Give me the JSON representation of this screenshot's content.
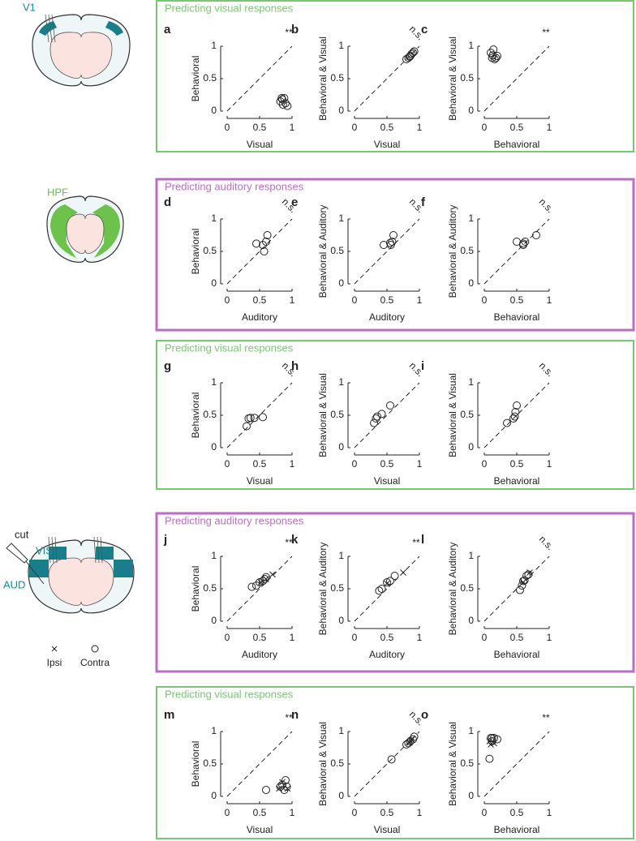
{
  "panels": [
    {
      "title": "Predicting visual responses",
      "color": "#7cc576"
    },
    {
      "title": "Predicting auditory responses",
      "color": "#b86fc0"
    },
    {
      "title": "Predicting visual responses",
      "color": "#7cc576"
    },
    {
      "title": "Predicting auditory responses",
      "color": "#b86fc0"
    },
    {
      "title": "Predicting visual responses",
      "color": "#7cc576"
    }
  ],
  "brains": {
    "region_1": "V1",
    "region_2": "HPF",
    "region_3a": "VIS",
    "region_3b": "AUD",
    "cut": "cut",
    "legend": [
      "Ipsi",
      "Contra"
    ]
  },
  "chart_data": [
    {
      "type": "scatter",
      "label": "a",
      "significance": "**",
      "xlabel": "Visual",
      "ylabel": "Behavioral",
      "xlim": [
        0,
        1
      ],
      "ylim": [
        0,
        1
      ],
      "xticks": [
        0,
        0.5,
        1
      ],
      "yticks": [
        0,
        0.5,
        1
      ],
      "series": [
        {
          "marker": "circle",
          "x": [
            0.85,
            0.88,
            0.82,
            0.9,
            0.93,
            0.86,
            0.84
          ],
          "y": [
            0.18,
            0.2,
            0.15,
            0.12,
            0.08,
            0.1,
            0.2
          ]
        }
      ]
    },
    {
      "type": "scatter",
      "label": "b",
      "significance": "n.s.",
      "xlabel": "Visual",
      "ylabel": "Behavioral & Visual",
      "xlim": [
        0,
        1
      ],
      "ylim": [
        0,
        1
      ],
      "xticks": [
        0,
        0.5,
        1
      ],
      "yticks": [
        0,
        0.5,
        1
      ],
      "series": [
        {
          "marker": "circle",
          "x": [
            0.8,
            0.83,
            0.85,
            0.88,
            0.9,
            0.92,
            0.86
          ],
          "y": [
            0.8,
            0.82,
            0.84,
            0.88,
            0.9,
            0.92,
            0.85
          ]
        }
      ]
    },
    {
      "type": "scatter",
      "label": "c",
      "significance": "**",
      "xlabel": "Behavioral",
      "ylabel": "Behavioral & Visual",
      "xlim": [
        0,
        1
      ],
      "ylim": [
        0,
        1
      ],
      "xticks": [
        0,
        0.5,
        1
      ],
      "yticks": [
        0,
        0.5,
        1
      ],
      "series": [
        {
          "marker": "circle",
          "x": [
            0.1,
            0.14,
            0.12,
            0.16,
            0.2,
            0.18,
            0.13
          ],
          "y": [
            0.9,
            0.95,
            0.82,
            0.8,
            0.85,
            0.82,
            0.86
          ]
        }
      ]
    },
    {
      "type": "scatter",
      "label": "d",
      "significance": "n.s.",
      "xlabel": "Auditory",
      "ylabel": "Behavioral",
      "xlim": [
        0,
        1
      ],
      "ylim": [
        0,
        1
      ],
      "xticks": [
        0,
        0.5,
        1
      ],
      "yticks": [
        0,
        0.5,
        1
      ],
      "series": [
        {
          "marker": "circle",
          "x": [
            0.45,
            0.55,
            0.6,
            0.62,
            0.57
          ],
          "y": [
            0.62,
            0.6,
            0.65,
            0.75,
            0.5
          ]
        }
      ]
    },
    {
      "type": "scatter",
      "label": "e",
      "significance": "n.s.",
      "xlabel": "Auditory",
      "ylabel": "Behavioral & Auditory",
      "xlim": [
        0,
        1
      ],
      "ylim": [
        0,
        1
      ],
      "xticks": [
        0,
        0.5,
        1
      ],
      "yticks": [
        0,
        0.5,
        1
      ],
      "series": [
        {
          "marker": "circle",
          "x": [
            0.45,
            0.55,
            0.58,
            0.6,
            0.56
          ],
          "y": [
            0.6,
            0.63,
            0.65,
            0.75,
            0.6
          ]
        }
      ]
    },
    {
      "type": "scatter",
      "label": "f",
      "significance": "n.s.",
      "xlabel": "Behavioral",
      "ylabel": "Behavioral & Auditory",
      "xlim": [
        0,
        1
      ],
      "ylim": [
        0,
        1
      ],
      "xticks": [
        0,
        0.5,
        1
      ],
      "yticks": [
        0,
        0.5,
        1
      ],
      "series": [
        {
          "marker": "circle",
          "x": [
            0.5,
            0.6,
            0.63,
            0.8,
            0.6
          ],
          "y": [
            0.65,
            0.62,
            0.65,
            0.75,
            0.6
          ]
        }
      ]
    },
    {
      "type": "scatter",
      "label": "g",
      "significance": "n.s.",
      "xlabel": "Visual",
      "ylabel": "Behavioral",
      "xlim": [
        0,
        1
      ],
      "ylim": [
        0,
        1
      ],
      "xticks": [
        0,
        0.5,
        1
      ],
      "yticks": [
        0,
        0.5,
        1
      ],
      "series": [
        {
          "marker": "circle",
          "x": [
            0.3,
            0.33,
            0.36,
            0.42,
            0.55
          ],
          "y": [
            0.33,
            0.45,
            0.46,
            0.46,
            0.47
          ]
        }
      ]
    },
    {
      "type": "scatter",
      "label": "h",
      "significance": "n.s.",
      "xlabel": "Visual",
      "ylabel": "Behavioral & Visual",
      "xlim": [
        0,
        1
      ],
      "ylim": [
        0,
        1
      ],
      "xticks": [
        0,
        0.5,
        1
      ],
      "yticks": [
        0,
        0.5,
        1
      ],
      "series": [
        {
          "marker": "circle",
          "x": [
            0.3,
            0.33,
            0.35,
            0.42,
            0.55
          ],
          "y": [
            0.38,
            0.45,
            0.48,
            0.52,
            0.65
          ]
        }
      ]
    },
    {
      "type": "scatter",
      "label": "i",
      "significance": "n.s.",
      "xlabel": "Behavioral",
      "ylabel": "Behavioral & Visual",
      "xlim": [
        0,
        1
      ],
      "ylim": [
        0,
        1
      ],
      "xticks": [
        0,
        0.5,
        1
      ],
      "yticks": [
        0,
        0.5,
        1
      ],
      "series": [
        {
          "marker": "circle",
          "x": [
            0.35,
            0.45,
            0.47,
            0.48,
            0.5
          ],
          "y": [
            0.38,
            0.45,
            0.48,
            0.55,
            0.65
          ]
        }
      ]
    },
    {
      "type": "scatter",
      "label": "j",
      "significance": "**",
      "xlabel": "Auditory",
      "ylabel": "Behavioral",
      "xlim": [
        0,
        1
      ],
      "ylim": [
        0,
        1
      ],
      "xticks": [
        0,
        0.5,
        1
      ],
      "yticks": [
        0,
        0.5,
        1
      ],
      "series": [
        {
          "marker": "circle",
          "x": [
            0.38,
            0.45,
            0.5,
            0.55,
            0.58,
            0.6
          ],
          "y": [
            0.53,
            0.55,
            0.6,
            0.62,
            0.65,
            0.68
          ]
        },
        {
          "marker": "cross",
          "x": [
            0.52,
            0.7,
            0.6
          ],
          "y": [
            0.6,
            0.72,
            0.65
          ]
        }
      ]
    },
    {
      "type": "scatter",
      "label": "k",
      "significance": "**",
      "xlabel": "Auditory",
      "ylabel": "Behavioral & Auditory",
      "xlim": [
        0,
        1
      ],
      "ylim": [
        0,
        1
      ],
      "xticks": [
        0,
        0.5,
        1
      ],
      "yticks": [
        0,
        0.5,
        1
      ],
      "series": [
        {
          "marker": "circle",
          "x": [
            0.38,
            0.42,
            0.5,
            0.55,
            0.62
          ],
          "y": [
            0.47,
            0.5,
            0.6,
            0.62,
            0.7
          ]
        },
        {
          "marker": "cross",
          "x": [
            0.5,
            0.75
          ],
          "y": [
            0.58,
            0.75
          ]
        }
      ]
    },
    {
      "type": "scatter",
      "label": "l",
      "significance": "n.s.",
      "xlabel": "Behavioral",
      "ylabel": "Behavioral & Auditory",
      "xlim": [
        0,
        1
      ],
      "ylim": [
        0,
        1
      ],
      "xticks": [
        0,
        0.5,
        1
      ],
      "yticks": [
        0,
        0.5,
        1
      ],
      "series": [
        {
          "marker": "circle",
          "x": [
            0.55,
            0.58,
            0.6,
            0.62,
            0.65,
            0.68
          ],
          "y": [
            0.48,
            0.55,
            0.62,
            0.63,
            0.7,
            0.72
          ]
        },
        {
          "marker": "cross",
          "x": [
            0.7,
            0.6
          ],
          "y": [
            0.75,
            0.6
          ]
        }
      ]
    },
    {
      "type": "scatter",
      "label": "m",
      "significance": "**",
      "xlabel": "Visual",
      "ylabel": "Behavioral",
      "xlim": [
        0,
        1
      ],
      "ylim": [
        0,
        1
      ],
      "xticks": [
        0,
        0.5,
        1
      ],
      "yticks": [
        0,
        0.5,
        1
      ],
      "series": [
        {
          "marker": "circle",
          "x": [
            0.6,
            0.85,
            0.9,
            0.92,
            0.88,
            0.82
          ],
          "y": [
            0.1,
            0.18,
            0.25,
            0.15,
            0.1,
            0.15
          ]
        },
        {
          "marker": "cross",
          "x": [
            0.85,
            0.8,
            0.93
          ],
          "y": [
            0.22,
            0.12,
            0.12
          ]
        }
      ]
    },
    {
      "type": "scatter",
      "label": "n",
      "significance": "n.s.",
      "xlabel": "Visual",
      "ylabel": "Behavioral & Visual",
      "xlim": [
        0,
        1
      ],
      "ylim": [
        0,
        1
      ],
      "xticks": [
        0,
        0.5,
        1
      ],
      "yticks": [
        0,
        0.5,
        1
      ],
      "series": [
        {
          "marker": "circle",
          "x": [
            0.57,
            0.8,
            0.83,
            0.86,
            0.9,
            0.92
          ],
          "y": [
            0.57,
            0.8,
            0.82,
            0.85,
            0.88,
            0.92
          ]
        },
        {
          "marker": "cross",
          "x": [
            0.85,
            0.88
          ],
          "y": [
            0.83,
            0.87
          ]
        }
      ]
    },
    {
      "type": "scatter",
      "label": "o",
      "significance": "**",
      "xlabel": "Behavioral",
      "ylabel": "Behavioral & Visual",
      "xlim": [
        0,
        1
      ],
      "ylim": [
        0,
        1
      ],
      "xticks": [
        0,
        0.5,
        1
      ],
      "yticks": [
        0,
        0.5,
        1
      ],
      "series": [
        {
          "marker": "circle",
          "x": [
            0.1,
            0.12,
            0.15,
            0.2,
            0.08,
            0.12
          ],
          "y": [
            0.9,
            0.85,
            0.9,
            0.88,
            0.58,
            0.9
          ]
        },
        {
          "marker": "cross",
          "x": [
            0.1,
            0.15,
            0.08
          ],
          "y": [
            0.8,
            0.82,
            0.85
          ]
        }
      ]
    }
  ]
}
